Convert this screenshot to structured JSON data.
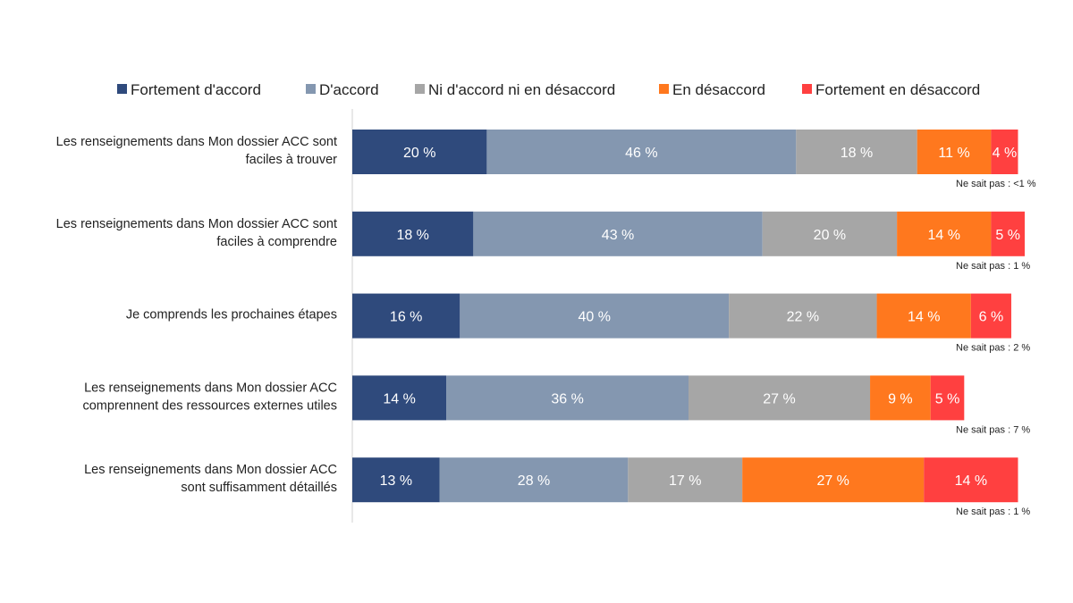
{
  "chart_data": {
    "type": "bar",
    "orientation": "horizontal",
    "stacked": true,
    "legend_position": "top",
    "grid": false,
    "xlim": [
      0,
      100
    ],
    "unit_suffix": " %",
    "categories": [
      [
        "Les renseignements dans Mon dossier ACC sont",
        "faciles à trouver"
      ],
      [
        "Les renseignements dans Mon dossier ACC sont",
        "faciles à comprendre"
      ],
      [
        "Je comprends les prochaines étapes"
      ],
      [
        "Les renseignements dans Mon dossier ACC",
        "comprennent des ressources externes utiles"
      ],
      [
        "Les renseignements dans Mon dossier ACC",
        "sont suffisamment détaillés"
      ]
    ],
    "series": [
      {
        "name": "Fortement d'accord",
        "color": "#2F4A7C",
        "values": [
          20,
          18,
          16,
          14,
          13
        ]
      },
      {
        "name": "D'accord",
        "color": "#8497B0",
        "values": [
          46,
          43,
          40,
          36,
          28
        ]
      },
      {
        "name": "Ni d'accord ni en désaccord",
        "color": "#A6A6A6",
        "values": [
          18,
          20,
          22,
          27,
          17
        ]
      },
      {
        "name": "En désaccord",
        "color": "#FF781E",
        "values": [
          11,
          14,
          14,
          9,
          27
        ]
      },
      {
        "name": "Fortement en désaccord",
        "color": "#FF4040",
        "values": [
          4,
          5,
          6,
          5,
          14
        ]
      }
    ],
    "notes": [
      "Ne sait pas : <1 %",
      "Ne sait pas : 1 %",
      "Ne sait pas : 2 %",
      "Ne sait pas : 7 %",
      "Ne sait pas : 1 %"
    ]
  }
}
